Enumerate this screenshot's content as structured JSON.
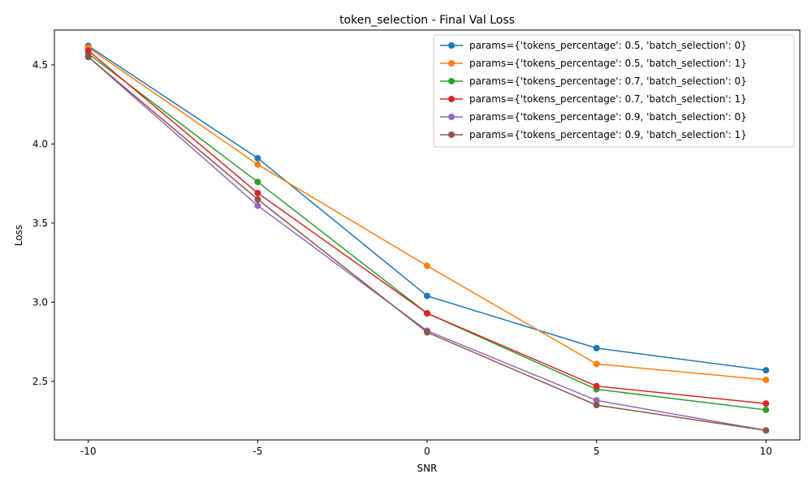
{
  "chart_data": {
    "type": "line",
    "title": "token_selection - Final Val Loss",
    "xlabel": "SNR",
    "ylabel": "Loss",
    "x": [
      -10,
      -5,
      0,
      5,
      10
    ],
    "x_tick_labels": [
      "-10",
      "-5",
      "0",
      "5",
      "10"
    ],
    "y_ticks": [
      2.5,
      3.0,
      3.5,
      4.0,
      4.5
    ],
    "y_tick_labels": [
      "2.5",
      "3.0",
      "3.5",
      "4.0",
      "4.5"
    ],
    "xlim": [
      -11,
      11
    ],
    "ylim": [
      2.13,
      4.72
    ],
    "grid": false,
    "legend_position": "top-right",
    "series": [
      {
        "name": "params={'tokens_percentage': 0.5, 'batch_selection': 0}",
        "color": "#1f77b4",
        "values": [
          4.62,
          3.91,
          3.04,
          2.71,
          2.57
        ]
      },
      {
        "name": "params={'tokens_percentage': 0.5, 'batch_selection': 1}",
        "color": "#ff7f0e",
        "values": [
          4.61,
          3.87,
          3.23,
          2.61,
          2.51
        ]
      },
      {
        "name": "params={'tokens_percentage': 0.7, 'batch_selection': 0}",
        "color": "#2ca02c",
        "values": [
          4.57,
          3.76,
          2.93,
          2.45,
          2.32
        ]
      },
      {
        "name": "params={'tokens_percentage': 0.7, 'batch_selection': 1}",
        "color": "#d62728",
        "values": [
          4.59,
          3.69,
          2.93,
          2.47,
          2.36
        ]
      },
      {
        "name": "params={'tokens_percentage': 0.9, 'batch_selection': 0}",
        "color": "#9467bd",
        "values": [
          4.55,
          3.61,
          2.82,
          2.38,
          2.19
        ]
      },
      {
        "name": "params={'tokens_percentage': 0.9, 'batch_selection': 1}",
        "color": "#8c564b",
        "values": [
          4.55,
          3.65,
          2.81,
          2.35,
          2.19
        ]
      }
    ]
  }
}
